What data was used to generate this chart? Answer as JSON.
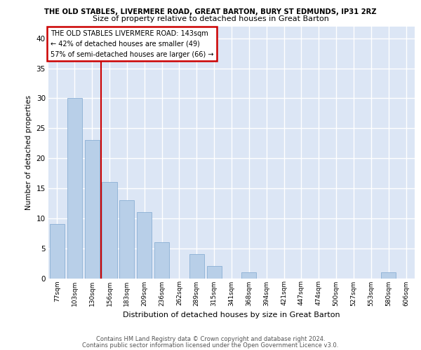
{
  "title1": "THE OLD STABLES, LIVERMERE ROAD, GREAT BARTON, BURY ST EDMUNDS, IP31 2RZ",
  "title2": "Size of property relative to detached houses in Great Barton",
  "xlabel": "Distribution of detached houses by size in Great Barton",
  "ylabel": "Number of detached properties",
  "categories": [
    "77sqm",
    "103sqm",
    "130sqm",
    "156sqm",
    "183sqm",
    "209sqm",
    "236sqm",
    "262sqm",
    "289sqm",
    "315sqm",
    "341sqm",
    "368sqm",
    "394sqm",
    "421sqm",
    "447sqm",
    "474sqm",
    "500sqm",
    "527sqm",
    "553sqm",
    "580sqm",
    "606sqm"
  ],
  "values": [
    9,
    30,
    23,
    16,
    13,
    11,
    6,
    0,
    4,
    2,
    0,
    1,
    0,
    0,
    0,
    0,
    0,
    0,
    0,
    1,
    0
  ],
  "bar_color": "#b8cfe8",
  "bar_edge_color": "#8aafd4",
  "subject_line_color": "#cc0000",
  "annotation_text": "THE OLD STABLES LIVERMERE ROAD: 143sqm\n← 42% of detached houses are smaller (49)\n57% of semi-detached houses are larger (66) →",
  "annotation_box_color": "#cc0000",
  "ylim": [
    0,
    42
  ],
  "yticks": [
    0,
    5,
    10,
    15,
    20,
    25,
    30,
    35,
    40
  ],
  "background_color": "#dce6f5",
  "grid_color": "#ffffff",
  "footer1": "Contains HM Land Registry data © Crown copyright and database right 2024.",
  "footer2": "Contains public sector information licensed under the Open Government Licence v3.0."
}
